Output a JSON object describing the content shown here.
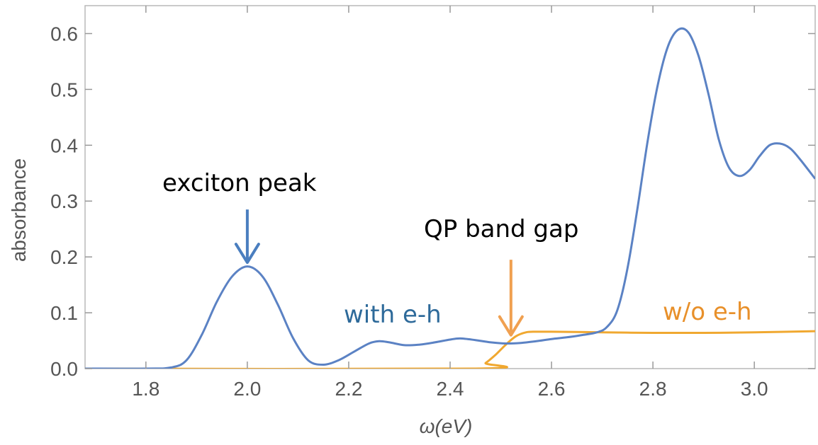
{
  "chart_data": {
    "type": "line",
    "xlabel": "ω(eV)",
    "ylabel": "absorbance",
    "xlim": [
      1.68,
      3.12
    ],
    "ylim": [
      0.0,
      0.65
    ],
    "xticks": [
      "1.8",
      "2.0",
      "2.2",
      "2.4",
      "2.6",
      "2.8",
      "3.0"
    ],
    "yticks": [
      "0.0",
      "0.1",
      "0.2",
      "0.3",
      "0.4",
      "0.5",
      "0.6"
    ],
    "grid": false,
    "frame": true,
    "series": [
      {
        "name": "with e-h",
        "color": "#5b82c4",
        "x": [
          1.68,
          1.8,
          1.85,
          1.88,
          1.91,
          1.94,
          1.97,
          2.0,
          2.03,
          2.06,
          2.09,
          2.12,
          2.15,
          2.18,
          2.21,
          2.24,
          2.26,
          2.28,
          2.31,
          2.34,
          2.37,
          2.4,
          2.42,
          2.45,
          2.48,
          2.51,
          2.54,
          2.57,
          2.6,
          2.63,
          2.66,
          2.69,
          2.71,
          2.73,
          2.75,
          2.77,
          2.79,
          2.81,
          2.83,
          2.85,
          2.87,
          2.89,
          2.91,
          2.93,
          2.95,
          2.97,
          2.99,
          3.01,
          3.03,
          3.05,
          3.07,
          3.09,
          3.12
        ],
        "y": [
          0.0,
          0.0,
          0.002,
          0.015,
          0.06,
          0.12,
          0.165,
          0.183,
          0.165,
          0.115,
          0.055,
          0.015,
          0.007,
          0.015,
          0.03,
          0.045,
          0.049,
          0.047,
          0.042,
          0.043,
          0.047,
          0.052,
          0.054,
          0.051,
          0.047,
          0.045,
          0.046,
          0.049,
          0.053,
          0.056,
          0.06,
          0.065,
          0.075,
          0.105,
          0.18,
          0.29,
          0.41,
          0.51,
          0.578,
          0.607,
          0.602,
          0.56,
          0.49,
          0.41,
          0.36,
          0.345,
          0.355,
          0.38,
          0.4,
          0.403,
          0.395,
          0.375,
          0.34
        ]
      },
      {
        "name": "w/o e-h",
        "color": "#f0a830",
        "x": [
          1.68,
          2.45,
          2.47,
          2.49,
          2.51,
          2.53,
          2.55,
          2.57,
          2.6,
          2.7,
          2.8,
          2.9,
          3.0,
          3.12
        ],
        "y": [
          0.0,
          0.0,
          0.01,
          0.025,
          0.043,
          0.058,
          0.065,
          0.066,
          0.066,
          0.065,
          0.064,
          0.064,
          0.065,
          0.067
        ]
      }
    ],
    "annotations": [
      {
        "text": "exciton peak",
        "color": "#000000",
        "arrow_color": "#4a7ebf",
        "arrow_x": 2.0,
        "arrow_y_from": 0.285,
        "arrow_y_to": 0.19
      },
      {
        "text": "QP band gap",
        "color": "#000000",
        "arrow_color": "#f0a050",
        "arrow_x": 2.52,
        "arrow_y_from": 0.195,
        "arrow_y_to": 0.06
      },
      {
        "text": "with e-h",
        "color": "#2e6a9a"
      },
      {
        "text": "w/o e-h",
        "color": "#e8902a"
      }
    ]
  }
}
